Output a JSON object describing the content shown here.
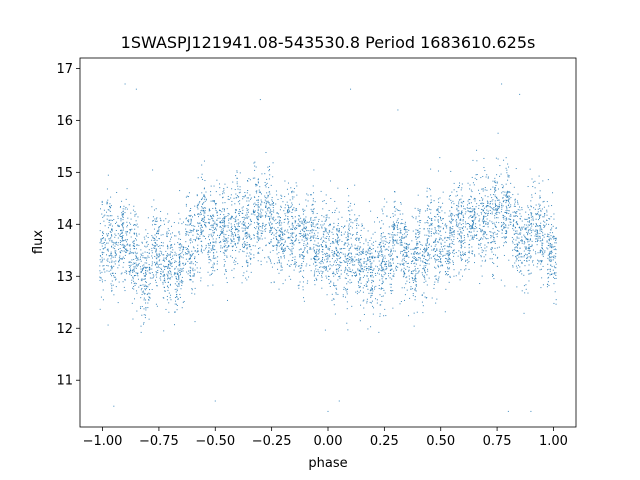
{
  "chart_data": {
    "type": "scatter",
    "title": "1SWASPJ121941.08-543530.8 Period 1683610.625s",
    "xlabel": "phase",
    "ylabel": "flux",
    "xlim": [
      -1.1,
      1.1
    ],
    "ylim": [
      10.1,
      17.2
    ],
    "xticks": [
      -1.0,
      -0.75,
      -0.5,
      -0.25,
      0.0,
      0.25,
      0.5,
      0.75,
      1.0
    ],
    "xtick_labels": [
      "−1.00",
      "−0.75",
      "−0.50",
      "−0.25",
      "0.00",
      "0.25",
      "0.50",
      "0.75",
      "1.00"
    ],
    "yticks": [
      11,
      12,
      13,
      14,
      15,
      16,
      17
    ],
    "ytick_labels": [
      "11",
      "12",
      "13",
      "14",
      "15",
      "16",
      "17"
    ],
    "grid": false,
    "point_color": "#1f77b4",
    "series": [
      {
        "name": "",
        "description": "phase-folded light curve, dense scatter repeated over two cycles",
        "x": [
          -1.0,
          -0.97,
          -0.95,
          -0.92,
          -0.9,
          -0.87,
          -0.85,
          -0.82,
          -0.8,
          -0.77,
          -0.75,
          -0.72,
          -0.7,
          -0.67,
          -0.65,
          -0.62,
          -0.6,
          -0.57,
          -0.55,
          -0.52,
          -0.5,
          -0.47,
          -0.45,
          -0.42,
          -0.4,
          -0.37,
          -0.35,
          -0.32,
          -0.3,
          -0.27,
          -0.25,
          -0.22,
          -0.2,
          -0.17,
          -0.15,
          -0.12,
          -0.1,
          -0.07,
          -0.05,
          -0.02,
          0.0,
          0.03,
          0.05,
          0.08,
          0.1,
          0.13,
          0.15,
          0.18,
          0.2,
          0.23,
          0.25,
          0.28,
          0.3,
          0.33,
          0.35,
          0.38,
          0.4,
          0.43,
          0.45,
          0.48,
          0.5,
          0.53,
          0.55,
          0.58,
          0.6,
          0.63,
          0.65,
          0.68,
          0.7,
          0.73,
          0.75,
          0.78,
          0.8,
          0.83,
          0.85,
          0.88,
          0.9,
          0.93,
          0.95,
          0.98,
          1.0,
          -0.9,
          -0.85,
          0.1,
          0.77,
          0.85,
          -0.3,
          0.31,
          0.0,
          -0.5,
          0.9,
          -0.95,
          0.05,
          0.8
        ],
        "y": [
          13.5,
          13.9,
          13.4,
          13.7,
          13.6,
          13.3,
          13.4,
          13.0,
          13.1,
          13.6,
          13.5,
          13.2,
          13.3,
          13.0,
          13.2,
          13.7,
          13.4,
          13.9,
          14.1,
          13.8,
          13.9,
          14.0,
          13.7,
          13.9,
          14.2,
          13.8,
          13.9,
          14.3,
          14.1,
          14.4,
          14.0,
          13.8,
          13.7,
          13.9,
          13.8,
          13.6,
          13.7,
          13.9,
          13.5,
          13.6,
          13.5,
          13.4,
          13.6,
          13.3,
          13.5,
          13.4,
          13.2,
          13.3,
          13.1,
          13.2,
          13.4,
          13.3,
          13.8,
          13.5,
          13.4,
          13.2,
          13.6,
          13.3,
          13.9,
          13.6,
          13.8,
          13.5,
          13.9,
          14.0,
          13.8,
          14.0,
          14.1,
          13.9,
          14.2,
          14.0,
          14.3,
          14.1,
          14.4,
          13.9,
          13.7,
          13.6,
          13.9,
          14.0,
          13.8,
          13.6,
          13.4,
          16.7,
          16.6,
          16.6,
          16.7,
          16.5,
          16.4,
          16.2,
          10.4,
          10.6,
          10.4,
          10.5,
          10.6,
          10.4
        ]
      }
    ]
  }
}
